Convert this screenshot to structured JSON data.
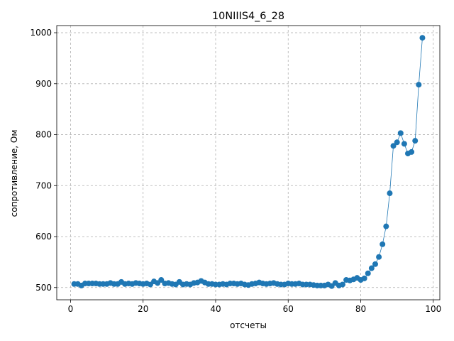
{
  "chart_data": {
    "type": "line",
    "title": "10NIIIS4_6_28",
    "xlabel": "отсчеты",
    "ylabel": "сопротивление, Ом",
    "xlim": [
      -3.8,
      101.8
    ],
    "ylim": [
      476,
      1014
    ],
    "xticks": [
      0,
      20,
      40,
      60,
      80,
      100
    ],
    "yticks": [
      500,
      600,
      700,
      800,
      900,
      1000
    ],
    "grid": true,
    "marker": "circle",
    "color": "#1f77b4",
    "x": [
      1,
      2,
      3,
      4,
      5,
      6,
      7,
      8,
      9,
      10,
      11,
      12,
      13,
      14,
      15,
      16,
      17,
      18,
      19,
      20,
      21,
      22,
      23,
      24,
      25,
      26,
      27,
      28,
      29,
      30,
      31,
      32,
      33,
      34,
      35,
      36,
      37,
      38,
      39,
      40,
      41,
      42,
      43,
      44,
      45,
      46,
      47,
      48,
      49,
      50,
      51,
      52,
      53,
      54,
      55,
      56,
      57,
      58,
      59,
      60,
      61,
      62,
      63,
      64,
      65,
      66,
      67,
      68,
      69,
      70,
      71,
      72,
      73,
      74,
      75,
      76,
      77,
      78,
      79,
      80,
      81,
      82,
      83,
      84,
      85,
      86,
      87,
      88,
      89,
      90,
      91,
      92,
      93,
      94,
      95,
      96,
      97
    ],
    "y": [
      507,
      507,
      504,
      508,
      508,
      508,
      508,
      507,
      507,
      507,
      509,
      507,
      507,
      511,
      507,
      508,
      507,
      509,
      508,
      507,
      508,
      506,
      512,
      509,
      515,
      508,
      509,
      507,
      506,
      511,
      506,
      507,
      506,
      509,
      510,
      513,
      510,
      507,
      507,
      506,
      506,
      507,
      506,
      508,
      508,
      507,
      508,
      506,
      505,
      507,
      508,
      510,
      508,
      507,
      508,
      509,
      507,
      506,
      506,
      508,
      507,
      507,
      508,
      506,
      506,
      506,
      505,
      504,
      504,
      504,
      506,
      503,
      509,
      504,
      506,
      515,
      514,
      516,
      519,
      515,
      518,
      528,
      538,
      546,
      560,
      585,
      620,
      685,
      778,
      785,
      803,
      782,
      763,
      766,
      788,
      898,
      990
    ]
  }
}
